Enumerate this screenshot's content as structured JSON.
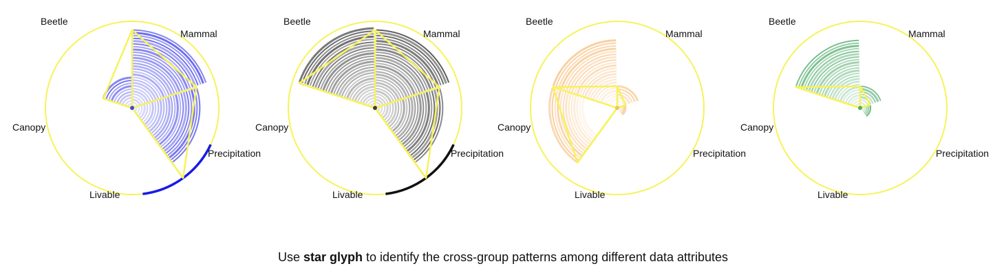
{
  "caption": {
    "before": "Use ",
    "emphasis": "star glyph",
    "after": " to identify the cross-group patterns among different data attributes"
  },
  "chart_data": [
    {
      "type": "star-glyph",
      "color": "#1a1ae6",
      "outline_color": "#f7f25a",
      "axes": [
        "Mammal",
        "Precipitation",
        "Livable",
        "Canopy",
        "Beetle"
      ],
      "values": [
        0.9,
        0.78,
        1.0,
        0.0,
        0.35
      ],
      "arc_band_ranges": [
        [
          0.0,
          0.9
        ],
        [
          0.05,
          0.78
        ],
        [
          0.0,
          0.0
        ],
        [
          0.0,
          0.0
        ],
        [
          0.05,
          0.35
        ]
      ],
      "highlight_axis": "Livable"
    },
    {
      "type": "star-glyph",
      "color": "#111111",
      "outline_color": "#f7f25a",
      "axes": [
        "Mammal",
        "Precipitation",
        "Livable",
        "Canopy",
        "Beetle"
      ],
      "values": [
        0.9,
        0.78,
        1.0,
        0.0,
        0.92
      ],
      "arc_band_ranges": [
        [
          0.0,
          0.9
        ],
        [
          0.05,
          0.78
        ],
        [
          0.0,
          0.0
        ],
        [
          0.0,
          0.0
        ],
        [
          0.05,
          0.92
        ]
      ],
      "highlight_axis": "Livable"
    },
    {
      "type": "star-glyph",
      "color": "#f5b265",
      "outline_color": "#f7f25a",
      "axes": [
        "Mammal",
        "Precipitation",
        "Livable",
        "Canopy",
        "Beetle"
      ],
      "values": [
        0.25,
        0.1,
        0.0,
        0.78,
        0.78
      ],
      "arc_band_ranges": [
        [
          0.05,
          0.25
        ],
        [
          0.03,
          0.1
        ],
        [
          0.0,
          0.0
        ],
        [
          0.4,
          0.78
        ],
        [
          0.1,
          0.78
        ]
      ],
      "highlight_axis": ""
    },
    {
      "type": "star-glyph",
      "color": "#2e9a4e",
      "outline_color": "#f7f25a",
      "axes": [
        "Mammal",
        "Precipitation",
        "Livable",
        "Canopy",
        "Beetle"
      ],
      "values": [
        0.25,
        0.12,
        0.0,
        0.0,
        0.78
      ],
      "arc_band_ranges": [
        [
          0.03,
          0.25
        ],
        [
          0.03,
          0.12
        ],
        [
          0.0,
          0.0
        ],
        [
          0.0,
          0.0
        ],
        [
          0.05,
          0.78
        ]
      ],
      "highlight_axis": ""
    }
  ]
}
